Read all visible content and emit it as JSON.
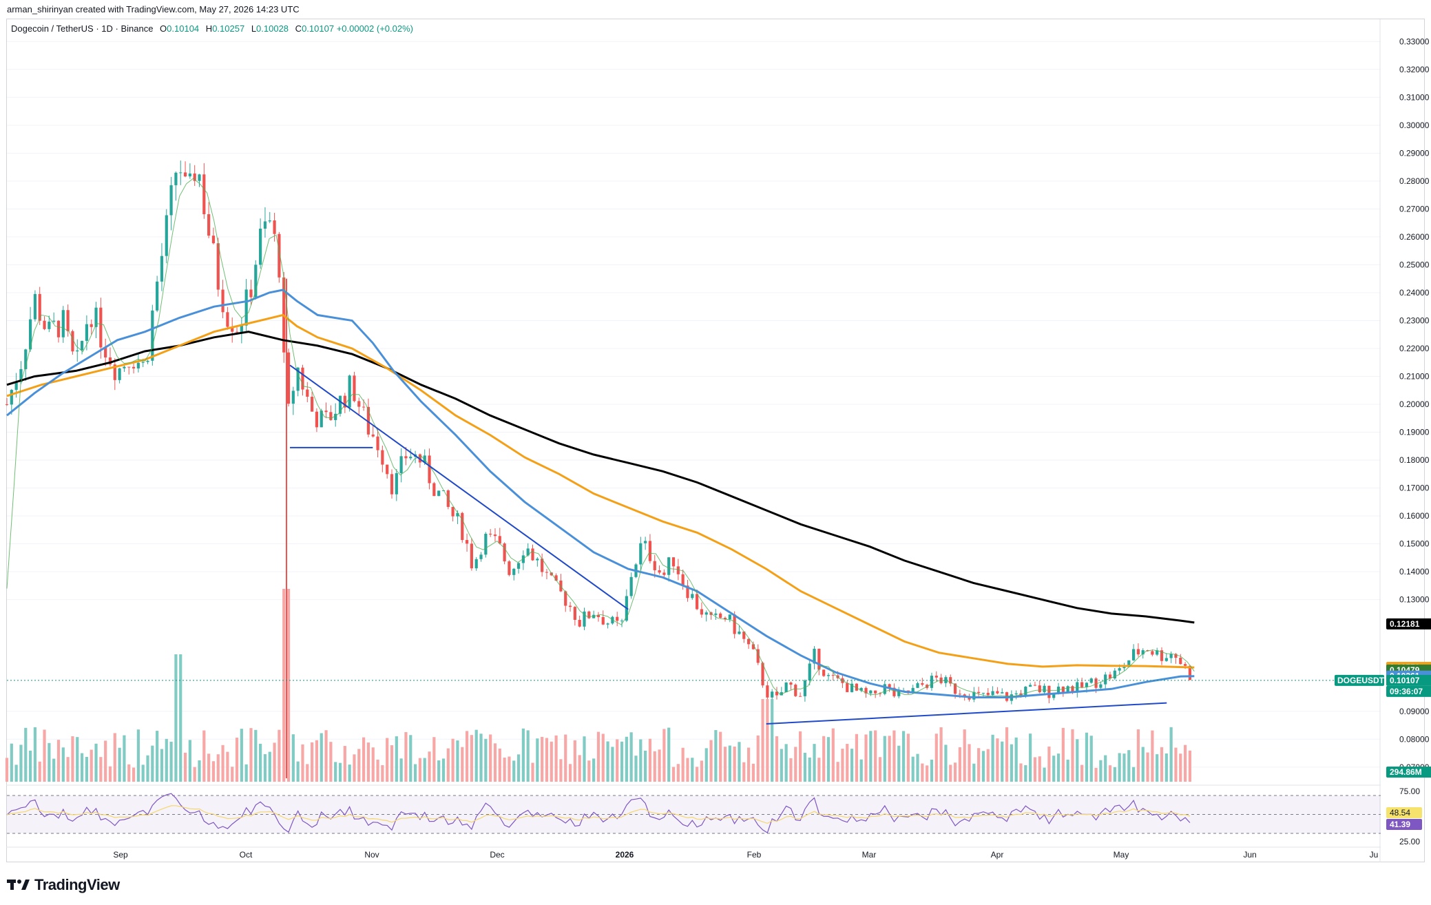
{
  "header": {
    "created_by": "arman_shirinyan created with TradingView.com, May 27, 2026 14:23 UTC"
  },
  "legend": {
    "symbol": "Dogecoin / TetherUS · 1D · Binance",
    "o_label": "O",
    "o": "0.10104",
    "h_label": "H",
    "h": "0.10257",
    "l_label": "L",
    "l": "0.10028",
    "c_label": "C",
    "c": "0.10107",
    "change": "+0.00002 (+0.02%)"
  },
  "footer": {
    "brand": "TradingView"
  },
  "colors": {
    "up": "#26a69a",
    "down": "#ef5350",
    "ma200": "#000000",
    "ma100": "#f4a017",
    "ma50": "#4a90d9",
    "ma20": "#4caf50",
    "trendline": "#1f49c7",
    "rsi": "#7e57c2",
    "rsi_ma": "#f5d76e",
    "vol_up": "#80cbc4",
    "vol_down": "#f7a8a6"
  },
  "chart_data": {
    "type": "candlestick",
    "title": "Dogecoin / TetherUS · 1D · Binance",
    "y_axis": {
      "ticks": [
        "0.33000",
        "0.32000",
        "0.31000",
        "0.30000",
        "0.29000",
        "0.28000",
        "0.27000",
        "0.26000",
        "0.25000",
        "0.24000",
        "0.23000",
        "0.22000",
        "0.21000",
        "0.20000",
        "0.19000",
        "0.18000",
        "0.17000",
        "0.16000",
        "0.15000",
        "0.14000",
        "0.13000",
        "0.09000",
        "0.08000",
        "0.07000"
      ],
      "range": [
        0.066,
        0.335
      ]
    },
    "x_axis": {
      "ticks": [
        "Sep",
        "Oct",
        "Nov",
        "Dec",
        "2026",
        "Feb",
        "Mar",
        "Apr",
        "May",
        "Jun",
        "Ju"
      ]
    },
    "price_labels": [
      {
        "label": "",
        "value": "0.12181",
        "bg": "#000000"
      },
      {
        "label": "",
        "value": "0.10572",
        "bg": "#f4a017"
      },
      {
        "label": "",
        "value": "0.10479",
        "bg": "#2e7d32"
      },
      {
        "label": "",
        "value": "0.10261",
        "bg": "#4a90d9"
      },
      {
        "label": "DOGEUSDT",
        "value": "0.10107",
        "bg": "#089981"
      },
      {
        "label": "",
        "value": "09:36:07",
        "bg": "#089981"
      }
    ],
    "volume_label": "294.86M",
    "rsi": {
      "ticks": [
        "75.00",
        "25.00"
      ],
      "rsi_ma_value": "48.54",
      "rsi_value": "41.39"
    },
    "moving_averages": [
      {
        "name": "",
        "color": "#000000",
        "points": [
          [
            0,
            0.207
          ],
          [
            40,
            0.21
          ],
          [
            100,
            0.212
          ],
          [
            150,
            0.215
          ],
          [
            200,
            0.219
          ],
          [
            250,
            0.221
          ],
          [
            300,
            0.224
          ],
          [
            350,
            0.226
          ],
          [
            400,
            0.223
          ],
          [
            450,
            0.221
          ],
          [
            500,
            0.218
          ],
          [
            550,
            0.213
          ],
          [
            600,
            0.207
          ],
          [
            650,
            0.202
          ],
          [
            700,
            0.196
          ],
          [
            750,
            0.191
          ],
          [
            800,
            0.186
          ],
          [
            850,
            0.182
          ],
          [
            900,
            0.179
          ],
          [
            950,
            0.176
          ],
          [
            1000,
            0.172
          ],
          [
            1050,
            0.167
          ],
          [
            1100,
            0.162
          ],
          [
            1150,
            0.157
          ],
          [
            1200,
            0.153
          ],
          [
            1250,
            0.149
          ],
          [
            1300,
            0.144
          ],
          [
            1350,
            0.14
          ],
          [
            1400,
            0.136
          ],
          [
            1450,
            0.133
          ],
          [
            1500,
            0.13
          ],
          [
            1550,
            0.127
          ],
          [
            1600,
            0.125
          ],
          [
            1650,
            0.124
          ],
          [
            1700,
            0.1225
          ],
          [
            1720,
            0.1218
          ]
        ]
      },
      {
        "name": "",
        "color": "#f4a017",
        "points": [
          [
            0,
            0.203
          ],
          [
            50,
            0.207
          ],
          [
            100,
            0.21
          ],
          [
            150,
            0.213
          ],
          [
            200,
            0.216
          ],
          [
            250,
            0.221
          ],
          [
            300,
            0.226
          ],
          [
            350,
            0.229
          ],
          [
            400,
            0.232
          ],
          [
            420,
            0.228
          ],
          [
            450,
            0.224
          ],
          [
            500,
            0.22
          ],
          [
            550,
            0.213
          ],
          [
            600,
            0.205
          ],
          [
            650,
            0.196
          ],
          [
            700,
            0.189
          ],
          [
            750,
            0.181
          ],
          [
            800,
            0.175
          ],
          [
            850,
            0.168
          ],
          [
            900,
            0.163
          ],
          [
            950,
            0.158
          ],
          [
            1000,
            0.154
          ],
          [
            1050,
            0.148
          ],
          [
            1100,
            0.141
          ],
          [
            1150,
            0.133
          ],
          [
            1200,
            0.127
          ],
          [
            1250,
            0.121
          ],
          [
            1300,
            0.115
          ],
          [
            1350,
            0.111
          ],
          [
            1400,
            0.109
          ],
          [
            1450,
            0.107
          ],
          [
            1500,
            0.106
          ],
          [
            1550,
            0.1065
          ],
          [
            1600,
            0.1063
          ],
          [
            1650,
            0.1062
          ],
          [
            1720,
            0.1057
          ]
        ]
      },
      {
        "name": "",
        "color": "#4a90d9",
        "points": [
          [
            0,
            0.196
          ],
          [
            40,
            0.204
          ],
          [
            80,
            0.211
          ],
          [
            120,
            0.217
          ],
          [
            160,
            0.223
          ],
          [
            200,
            0.226
          ],
          [
            250,
            0.231
          ],
          [
            300,
            0.235
          ],
          [
            350,
            0.237
          ],
          [
            380,
            0.24
          ],
          [
            400,
            0.241
          ],
          [
            420,
            0.237
          ],
          [
            450,
            0.232
          ],
          [
            500,
            0.23
          ],
          [
            530,
            0.222
          ],
          [
            560,
            0.212
          ],
          [
            600,
            0.201
          ],
          [
            650,
            0.189
          ],
          [
            700,
            0.176
          ],
          [
            750,
            0.165
          ],
          [
            800,
            0.156
          ],
          [
            850,
            0.147
          ],
          [
            900,
            0.141
          ],
          [
            950,
            0.138
          ],
          [
            1000,
            0.133
          ],
          [
            1050,
            0.125
          ],
          [
            1100,
            0.117
          ],
          [
            1150,
            0.11
          ],
          [
            1200,
            0.104
          ],
          [
            1250,
            0.1
          ],
          [
            1300,
            0.097
          ],
          [
            1350,
            0.096
          ],
          [
            1400,
            0.095
          ],
          [
            1450,
            0.095
          ],
          [
            1500,
            0.096
          ],
          [
            1550,
            0.097
          ],
          [
            1600,
            0.098
          ],
          [
            1650,
            0.1005
          ],
          [
            1700,
            0.1025
          ],
          [
            1720,
            0.1026
          ]
        ]
      }
    ],
    "trendlines": [
      {
        "points": [
          [
            410,
            0.214
          ],
          [
            900,
            0.1265
          ]
        ]
      },
      {
        "points": [
          [
            410,
            0.1845
          ],
          [
            530,
            0.1845
          ]
        ]
      },
      {
        "points": [
          [
            1100,
            0.0855
          ],
          [
            1680,
            0.093
          ]
        ]
      }
    ],
    "candles": "see script-generated series (synthetic approximation of DOGE/USDT daily, Aug 2025 – May 2026)"
  }
}
